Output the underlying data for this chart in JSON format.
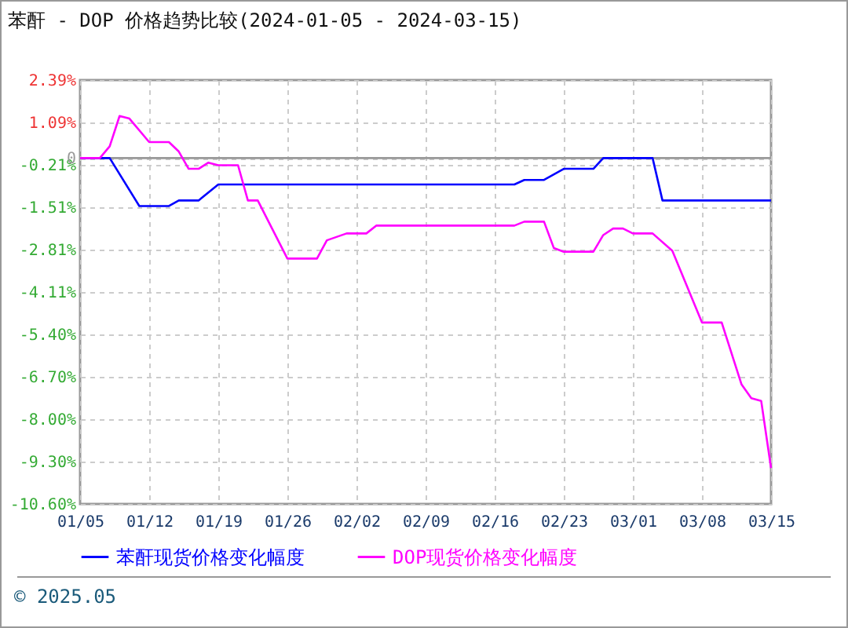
{
  "chart_data": {
    "type": "line",
    "title": "苯酐 - DOP 价格趋势比较(2024-01-05 - 2024-03-15)",
    "series": [
      {
        "name": "苯酐现货价格变化幅度",
        "color": "#0000ff",
        "x": [
          "2024-01-05",
          "2024-01-08",
          "2024-01-11",
          "2024-01-14",
          "2024-01-15",
          "2024-01-17",
          "2024-01-19",
          "2024-02-18",
          "2024-02-19",
          "2024-02-21",
          "2024-02-23",
          "2024-02-26",
          "2024-02-27",
          "2024-03-03",
          "2024-03-04",
          "2024-03-15"
        ],
        "values": [
          0,
          0,
          -1.47,
          -1.47,
          -1.3,
          -1.3,
          -0.81,
          -0.81,
          -0.67,
          -0.67,
          -0.33,
          -0.33,
          0,
          0,
          -1.3,
          -1.3
        ]
      },
      {
        "name": "DOP现货价格变化幅度",
        "color": "#ff00ff",
        "x": [
          "2024-01-05",
          "2024-01-07",
          "2024-01-08",
          "2024-01-09",
          "2024-01-10",
          "2024-01-12",
          "2024-01-14",
          "2024-01-15",
          "2024-01-16",
          "2024-01-17",
          "2024-01-18",
          "2024-01-19",
          "2024-01-21",
          "2024-01-22",
          "2024-01-23",
          "2024-01-26",
          "2024-01-29",
          "2024-01-30",
          "2024-02-01",
          "2024-02-03",
          "2024-02-04",
          "2024-02-18",
          "2024-02-19",
          "2024-02-21",
          "2024-02-22",
          "2024-02-23",
          "2024-02-26",
          "2024-02-27",
          "2024-02-28",
          "2024-02-29",
          "2024-03-01",
          "2024-03-03",
          "2024-03-05",
          "2024-03-08",
          "2024-03-10",
          "2024-03-12",
          "2024-03-13",
          "2024-03-14",
          "2024-03-15"
        ],
        "values": [
          0,
          0,
          0.36,
          1.29,
          1.21,
          0.49,
          0.49,
          0.2,
          -0.33,
          -0.33,
          -0.14,
          -0.22,
          -0.22,
          -1.3,
          -1.3,
          -3.08,
          -3.08,
          -2.52,
          -2.31,
          -2.31,
          -2.07,
          -2.07,
          -1.95,
          -1.95,
          -2.76,
          -2.87,
          -2.87,
          -2.36,
          -2.16,
          -2.16,
          -2.31,
          -2.31,
          -2.84,
          -5.04,
          -5.04,
          -6.93,
          -7.36,
          -7.44,
          -9.5
        ]
      }
    ],
    "xlim": [
      "2024-01-05",
      "2024-03-15"
    ],
    "xticks": [
      {
        "value": "2024-01-05",
        "label": "01/05"
      },
      {
        "value": "2024-01-12",
        "label": "01/12"
      },
      {
        "value": "2024-01-19",
        "label": "01/19"
      },
      {
        "value": "2024-01-26",
        "label": "01/26"
      },
      {
        "value": "2024-02-02",
        "label": "02/02"
      },
      {
        "value": "2024-02-09",
        "label": "02/09"
      },
      {
        "value": "2024-02-16",
        "label": "02/16"
      },
      {
        "value": "2024-02-23",
        "label": "02/23"
      },
      {
        "value": "2024-03-01",
        "label": "03/01"
      },
      {
        "value": "2024-03-08",
        "label": "03/08"
      },
      {
        "value": "2024-03-15",
        "label": "03/15"
      }
    ],
    "ylim": [
      -10.6,
      2.39
    ],
    "yticks": [
      {
        "value": 2.39,
        "label": "2.39%"
      },
      {
        "value": 1.09,
        "label": "1.09%"
      },
      {
        "value": 0,
        "label": "0"
      },
      {
        "value": -0.21,
        "label": "-0.21%"
      },
      {
        "value": -1.51,
        "label": "-1.51%"
      },
      {
        "value": -2.81,
        "label": "-2.81%"
      },
      {
        "value": -4.11,
        "label": "-4.11%"
      },
      {
        "value": -5.4,
        "label": "-5.40%"
      },
      {
        "value": -6.7,
        "label": "-6.70%"
      },
      {
        "value": -8,
        "label": "-8.00%"
      },
      {
        "value": -9.3,
        "label": "-9.30%"
      },
      {
        "value": -10.6,
        "label": "-10.60%"
      }
    ],
    "ref_lines": [
      {
        "axis": "y",
        "value": 0,
        "color": "#999999"
      }
    ],
    "grid": true,
    "legend": "bottom",
    "line_style": "solid",
    "annotations": [
      "© 2025.05"
    ]
  }
}
